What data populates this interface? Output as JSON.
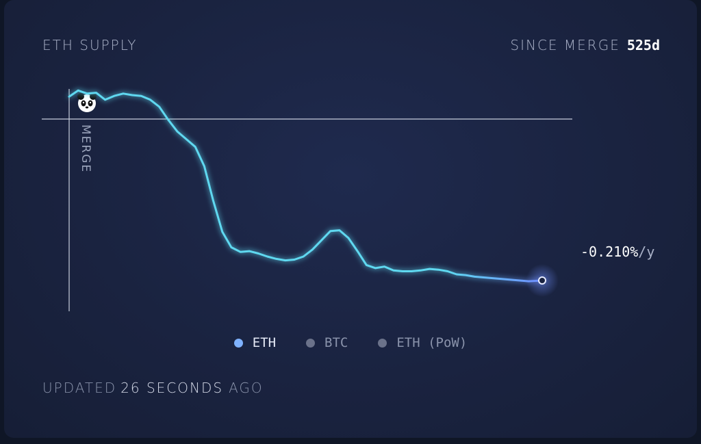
{
  "header": {
    "title": "ETH SUPPLY",
    "since_label": "SINCE MERGE",
    "since_value": "525d"
  },
  "chart_data": {
    "type": "line",
    "x": [
      0,
      10,
      20,
      30,
      40,
      50,
      60,
      70,
      80,
      90,
      100,
      110,
      120,
      130,
      140,
      150,
      160,
      170,
      180,
      190,
      200,
      210,
      220,
      230,
      240,
      250,
      260,
      270,
      280,
      290,
      300,
      310,
      320,
      330,
      340,
      350,
      360,
      370,
      380,
      390,
      400,
      410,
      420,
      430,
      440,
      450,
      460,
      470,
      480,
      490,
      500,
      510,
      525
    ],
    "values": [
      0.0,
      0.008,
      0.004,
      0.005,
      -0.004,
      0.001,
      0.004,
      0.002,
      0.001,
      -0.004,
      -0.013,
      -0.03,
      -0.045,
      -0.055,
      -0.065,
      -0.09,
      -0.135,
      -0.175,
      -0.195,
      -0.201,
      -0.2,
      -0.203,
      -0.207,
      -0.21,
      -0.212,
      -0.211,
      -0.207,
      -0.198,
      -0.186,
      -0.174,
      -0.173,
      -0.183,
      -0.2,
      -0.218,
      -0.222,
      -0.22,
      -0.225,
      -0.226,
      -0.226,
      -0.225,
      -0.223,
      -0.224,
      -0.226,
      -0.23,
      -0.231,
      -0.233,
      -0.234,
      -0.235,
      -0.236,
      -0.237,
      -0.238,
      -0.239,
      -0.238
    ],
    "ylim": [
      -0.3,
      0.01
    ],
    "xlim": [
      0,
      525
    ],
    "annotations": {
      "merge_label": "MERGE",
      "rate": "-0.210%",
      "rate_unit": "/y"
    },
    "line_color": "#5fd8f0",
    "line_color_end": "#6f8fff"
  },
  "legend": {
    "items": [
      {
        "label": "ETH",
        "active": true
      },
      {
        "label": "BTC",
        "active": false
      },
      {
        "label": "ETH (PoW)",
        "active": false
      }
    ]
  },
  "footer": {
    "updated_prefix": "UPDATED",
    "updated_number": "26",
    "updated_unit": "SECONDS",
    "updated_suffix": "AGO"
  }
}
